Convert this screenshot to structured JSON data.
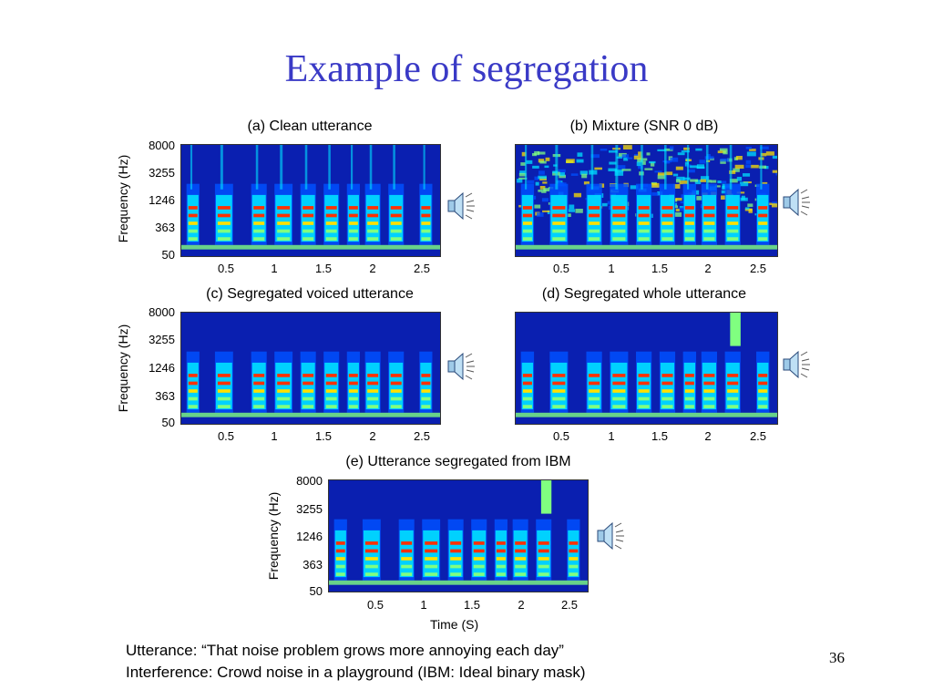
{
  "slide": {
    "title": "Example of segregation",
    "page_number": "36",
    "caption_line1": "Utterance: “That noise problem grows more annoying each day”",
    "caption_line2": "Interference: Crowd noise in a playground (IBM: Ideal binary mask)"
  },
  "axes": {
    "ylabel": "Frequency (Hz)",
    "xlabel": "Time (S)",
    "yticks": [
      "8000",
      "3255",
      "1246",
      "363",
      "50"
    ],
    "xticks": [
      "0.5",
      "1",
      "1.5",
      "2",
      "2.5"
    ]
  },
  "panels": [
    {
      "id": "a",
      "title": "(a) Clean utterance",
      "audio_icon": "speaker-icon"
    },
    {
      "id": "b",
      "title": "(b) Mixture (SNR 0 dB)",
      "audio_icon": "speaker-icon"
    },
    {
      "id": "c",
      "title": "(c) Segregated voiced utterance",
      "audio_icon": "speaker-icon"
    },
    {
      "id": "d",
      "title": "(d) Segregated whole utterance",
      "audio_icon": "speaker-icon"
    },
    {
      "id": "e",
      "title": "(e) Utterance segregated from IBM",
      "audio_icon": "speaker-icon"
    }
  ],
  "colors": {
    "title": "#3a3ac6",
    "spectrogram_background": "#0a1fb0",
    "colormap": [
      "#00008f",
      "#0050ff",
      "#00e0ff",
      "#80ff80",
      "#ffe000",
      "#ff3000",
      "#a00000"
    ]
  }
}
